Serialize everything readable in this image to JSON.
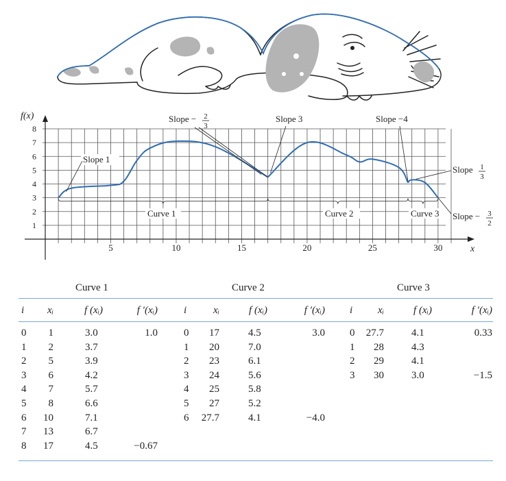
{
  "graph": {
    "y_axis_label": "f(x)",
    "x_axis_label": "x",
    "y_ticks": [
      "1",
      "2",
      "3",
      "4",
      "5",
      "6",
      "7",
      "8"
    ],
    "x_ticks": [
      "5",
      "10",
      "15",
      "20",
      "25",
      "30"
    ]
  },
  "annotations": {
    "slope1": "Slope 1",
    "slope_neg_2_3": "Slope −",
    "slope_neg_2_3_num": "2",
    "slope_neg_2_3_den": "3",
    "slope3": "Slope 3",
    "slope_neg4": "Slope −4",
    "slope_1_3": "Slope",
    "slope_1_3_num": "1",
    "slope_1_3_den": "3",
    "slope_neg_3_2": "Slope −",
    "slope_neg_3_2_num": "3",
    "slope_neg_3_2_den": "2",
    "curve1": "Curve 1",
    "curve2": "Curve 2",
    "curve3": "Curve 3"
  },
  "chart_data": {
    "type": "line",
    "xlim": [
      0,
      31
    ],
    "ylim": [
      0,
      8
    ],
    "grid": true,
    "curve1": {
      "x": [
        1,
        2,
        5,
        6,
        7,
        8,
        10,
        13,
        17
      ],
      "y": [
        3.0,
        3.7,
        3.9,
        4.2,
        5.7,
        6.6,
        7.1,
        6.7,
        4.5
      ]
    },
    "curve2": {
      "x": [
        17,
        20,
        23,
        24,
        25,
        27,
        27.7
      ],
      "y": [
        4.5,
        7.0,
        6.1,
        5.6,
        5.8,
        5.2,
        4.1
      ]
    },
    "curve3": {
      "x": [
        27.7,
        28,
        29,
        30
      ],
      "y": [
        4.1,
        4.3,
        4.1,
        3.0
      ]
    }
  },
  "table": {
    "curve_titles": [
      "Curve 1",
      "Curve 2",
      "Curve 3"
    ],
    "headers": [
      "i",
      "xᵢ",
      "f (xᵢ)",
      "f ′(xᵢ)"
    ],
    "curve1": [
      [
        "0",
        "1",
        "3.0",
        "1.0"
      ],
      [
        "1",
        "2",
        "3.7",
        ""
      ],
      [
        "2",
        "5",
        "3.9",
        ""
      ],
      [
        "3",
        "6",
        "4.2",
        ""
      ],
      [
        "4",
        "7",
        "5.7",
        ""
      ],
      [
        "5",
        "8",
        "6.6",
        ""
      ],
      [
        "6",
        "10",
        "7.1",
        ""
      ],
      [
        "7",
        "13",
        "6.7",
        ""
      ],
      [
        "8",
        "17",
        "4.5",
        "−0.67"
      ]
    ],
    "curve2": [
      [
        "0",
        "17",
        "4.5",
        "3.0"
      ],
      [
        "1",
        "20",
        "7.0",
        ""
      ],
      [
        "2",
        "23",
        "6.1",
        ""
      ],
      [
        "3",
        "24",
        "5.6",
        ""
      ],
      [
        "4",
        "25",
        "5.8",
        ""
      ],
      [
        "5",
        "27",
        "5.2",
        ""
      ],
      [
        "6",
        "27.7",
        "4.1",
        "−4.0"
      ]
    ],
    "curve3": [
      [
        "0",
        "27.7",
        "4.1",
        "0.33"
      ],
      [
        "1",
        "28",
        "4.3",
        ""
      ],
      [
        "2",
        "29",
        "4.1",
        ""
      ],
      [
        "3",
        "30",
        "3.0",
        "−1.5"
      ]
    ]
  },
  "colors": {
    "curve": "#2f6db5",
    "grid": "#555555",
    "rule": "#7aa6d6",
    "spot": "#b4b4b4"
  }
}
